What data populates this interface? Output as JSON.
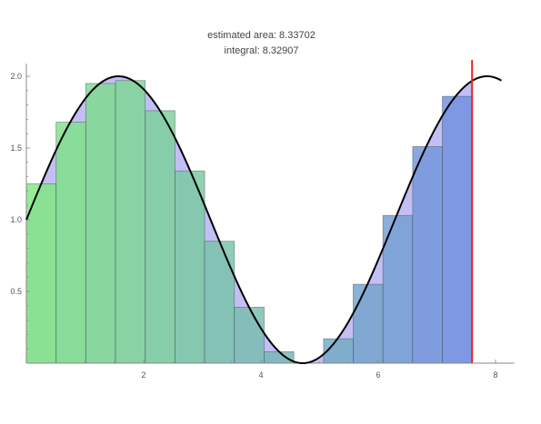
{
  "chart_data": {
    "type": "bar",
    "title_lines": [
      "estimated area: 8.33702",
      "integral: 8.32907"
    ],
    "xlabel": "",
    "ylabel": "",
    "xlim": [
      0,
      8.1
    ],
    "ylim": [
      0,
      2.05
    ],
    "x_ticks": [
      2,
      4,
      6,
      8
    ],
    "y_ticks": [
      0.5,
      1.0,
      1.5,
      2.0
    ],
    "x_tick_labels": [
      "2",
      "4",
      "6",
      "8"
    ],
    "y_tick_labels": [
      "0.5",
      "1.0",
      "1.5",
      "2.0"
    ],
    "curve": "1 + sin(x)",
    "curve_range": [
      0,
      8.1
    ],
    "bar_width": 0.5067,
    "bars": [
      {
        "x": 0.0,
        "height": 1.25
      },
      {
        "x": 0.507,
        "height": 1.68
      },
      {
        "x": 1.013,
        "height": 1.95
      },
      {
        "x": 1.52,
        "height": 1.97
      },
      {
        "x": 2.027,
        "height": 1.76
      },
      {
        "x": 2.533,
        "height": 1.34
      },
      {
        "x": 3.04,
        "height": 0.85
      },
      {
        "x": 3.547,
        "height": 0.39
      },
      {
        "x": 4.053,
        "height": 0.08
      },
      {
        "x": 4.56,
        "height": 0.0
      },
      {
        "x": 5.067,
        "height": 0.17
      },
      {
        "x": 5.573,
        "height": 0.55
      },
      {
        "x": 6.08,
        "height": 1.03
      },
      {
        "x": 6.587,
        "height": 1.51
      },
      {
        "x": 7.093,
        "height": 1.86
      }
    ],
    "marker_x": 7.6,
    "grid": false,
    "legend": "none"
  },
  "colors": {
    "bar_start": "#7ee87e",
    "bar_end": "#6f8fe0",
    "curve": "#000000",
    "marker": "#ee2222",
    "under_curve_tint": "#b9b4f2",
    "axis": "#888888",
    "tick_text": "#555555"
  }
}
